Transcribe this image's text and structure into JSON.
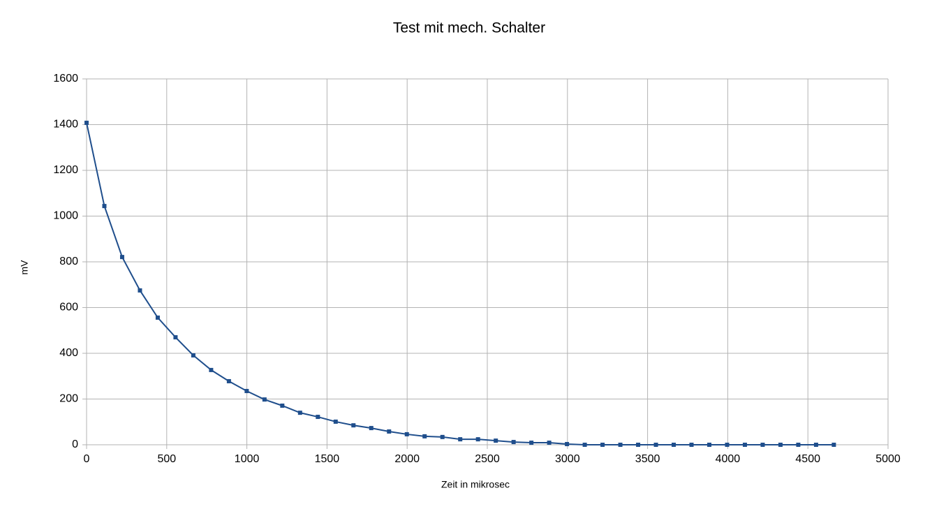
{
  "chart_data": {
    "type": "line",
    "title": "Test mit mech. Schalter",
    "x_label": "Zeit in mikrosec",
    "y_label": "mV",
    "x": [
      0,
      111,
      222,
      333,
      444,
      555,
      666,
      777,
      888,
      999,
      1110,
      1221,
      1332,
      1443,
      1554,
      1665,
      1776,
      1887,
      1998,
      2109,
      2220,
      2331,
      2442,
      2553,
      2664,
      2775,
      2886,
      2997,
      3108,
      3219,
      3330,
      3441,
      3552,
      3663,
      3774,
      3885,
      3996,
      4107,
      4218,
      4329,
      4440,
      4551,
      4662
    ],
    "series": [
      {
        "name": "mV",
        "color": "#1f4e8c",
        "values": [
          1408,
          1044,
          821,
          675,
          556,
          470,
          391,
          327,
          278,
          235,
          198,
          171,
          140,
          122,
          101,
          85,
          73,
          58,
          46,
          37,
          34,
          24,
          24,
          18,
          12,
          9,
          9,
          3,
          0,
          0,
          0,
          0,
          0,
          0,
          0,
          0,
          0,
          0,
          0,
          0,
          0,
          0,
          0
        ]
      }
    ],
    "xlim": [
      0,
      5000
    ],
    "xticks": [
      0,
      500,
      1000,
      1500,
      2000,
      2500,
      3000,
      3500,
      4000,
      4500,
      5000
    ],
    "ylim": [
      0,
      1600
    ],
    "yticks": [
      0,
      200,
      400,
      600,
      800,
      1000,
      1200,
      1400,
      1600
    ],
    "grid": true
  }
}
